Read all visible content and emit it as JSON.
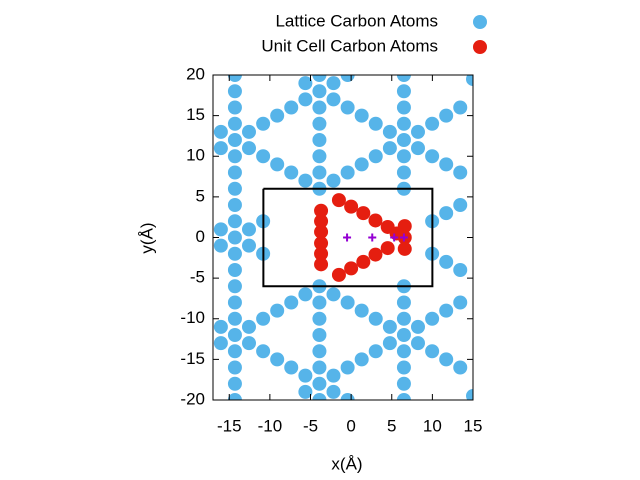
{
  "chart_data": {
    "type": "scatter",
    "xlabel": "x(Å)",
    "ylabel": "y(Å)",
    "xlim": [
      -17,
      15
    ],
    "ylim": [
      -20,
      20
    ],
    "xticks": [
      -15,
      -10,
      -5,
      0,
      5,
      10,
      15
    ],
    "yticks": [
      -20,
      -15,
      -10,
      -5,
      0,
      5,
      10,
      15,
      20
    ],
    "legend": "top-right",
    "series": [
      {
        "name": "Lattice Carbon Atoms",
        "color": "#56b4e9",
        "style": "circle",
        "x": [
          -14.3,
          -14.3,
          -14.3,
          -14.3,
          -14.3,
          -14.3,
          -14.3,
          -14.3,
          -14.3,
          -14.3,
          -14.3,
          -14.3,
          -14.3,
          -14.3,
          -14.3,
          -14.3,
          -14.3,
          -14.3,
          -14.3,
          -14.3,
          -14.3,
          -3.9,
          -3.9,
          -3.9,
          -3.9,
          -3.9,
          -3.9,
          -3.9,
          -3.9,
          -3.9,
          -3.9,
          -3.9,
          -3.9,
          -3.9,
          -3.9,
          -3.9,
          -3.9,
          6.5,
          6.5,
          6.5,
          6.5,
          6.5,
          6.5,
          6.5,
          6.5,
          6.5,
          6.5,
          6.5,
          6.5,
          6.5,
          6.5,
          6.5,
          6.5,
          -16.03,
          -16.03,
          -16.03,
          -16.03,
          -16.03,
          -16.03,
          -12.57,
          -12.57,
          -12.57,
          -12.57,
          -12.57,
          -12.57,
          -10.83,
          -10.83,
          -10.83,
          -10.83,
          -10.83,
          -10.83,
          -9.1,
          -9.1,
          -9.1,
          -9.1,
          -7.37,
          -7.37,
          -7.37,
          -7.37,
          -5.63,
          -5.63,
          -5.63,
          -5.63,
          -5.63,
          -5.63,
          -2.17,
          -2.17,
          -2.17,
          -2.17,
          -2.17,
          -2.17,
          -0.43,
          -0.43,
          -0.43,
          -0.43,
          -0.43,
          -0.43,
          1.3,
          1.3,
          1.3,
          1.3,
          3.03,
          3.03,
          3.03,
          3.03,
          4.77,
          4.77,
          4.77,
          4.77,
          8.23,
          8.23,
          8.23,
          8.23,
          9.97,
          9.97,
          9.97,
          9.97,
          9.97,
          9.97,
          11.7,
          11.7,
          11.7,
          11.7,
          11.7,
          11.7,
          13.43,
          13.43,
          13.43,
          13.43,
          13.43,
          13.43,
          15,
          15
        ],
        "y": [
          -20,
          -18,
          -16,
          -14,
          -12,
          -10,
          -8,
          -6,
          -4,
          -2,
          0,
          2,
          4,
          6,
          8,
          10,
          12,
          14,
          16,
          18,
          20,
          -20,
          -18,
          -16,
          -14,
          -12,
          -10,
          -8,
          -6,
          6,
          8,
          10,
          12,
          14,
          16,
          18,
          20,
          -20,
          -18,
          -16,
          -14,
          -12,
          -10,
          -8,
          -6,
          6,
          8,
          10,
          12,
          14,
          16,
          18,
          20,
          -13,
          -11,
          -1,
          1,
          11,
          13,
          -13,
          -11,
          -1,
          1,
          11,
          13,
          -14,
          -10,
          -2,
          2,
          10,
          14,
          -15,
          -9,
          9,
          15,
          -16,
          -8,
          8,
          16,
          -19,
          -17,
          -7,
          7,
          17,
          19,
          -19,
          -17,
          -7,
          7,
          17,
          19,
          -20,
          -16,
          -8,
          8,
          16,
          20,
          -15,
          -9,
          9,
          15,
          -14,
          -10,
          10,
          14,
          -13,
          -11,
          11,
          13,
          -13,
          -11,
          11,
          13,
          -14,
          -10,
          -2,
          2,
          10,
          14,
          -15,
          -9,
          -3,
          3,
          9,
          15,
          -16,
          -8,
          -4,
          4,
          8,
          16,
          -19.5,
          19.5
        ]
      },
      {
        "color": "#000000",
        "style": "line",
        "x": [
          -10.8,
          10,
          10,
          -10.8,
          -10.8
        ],
        "y": [
          6,
          6,
          -6,
          -6,
          6
        ]
      },
      {
        "name": "Unit Cell Carbon Atoms",
        "color": "#e51e10",
        "style": "circle",
        "x": [
          -3.7,
          -3.7,
          -3.7,
          -3.7,
          -3.7,
          -3.7,
          -1.5,
          0,
          1.5,
          3,
          4.5,
          -1.5,
          0,
          1.5,
          3,
          4.5,
          6.6,
          6.6,
          6.6,
          5.6
        ],
        "y": [
          -3.3,
          -2,
          -0.7,
          0.7,
          2,
          3.3,
          4.6,
          3.8,
          3,
          2.1,
          1.3,
          -4.6,
          -3.8,
          -3,
          -2.1,
          -1.3,
          1.4,
          0,
          -1.4,
          0.5
        ]
      },
      {
        "color": "#9400d3",
        "style": "plus",
        "x": [
          -0.5,
          2.6,
          5.3,
          6.5
        ],
        "y": [
          0,
          0,
          0,
          0
        ]
      }
    ]
  }
}
